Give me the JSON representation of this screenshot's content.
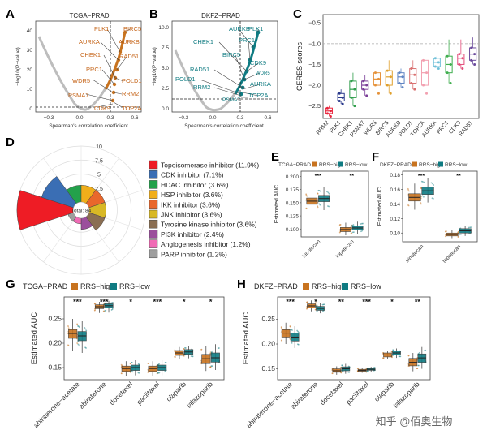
{
  "colors": {
    "high": "#c8731f",
    "low": "#0f7b82",
    "grey": "#b5b5b5",
    "dash": "#333333"
  },
  "panels": {
    "A": "A",
    "B": "B",
    "C": "C",
    "D": "D",
    "E": "E",
    "F": "F",
    "G": "G",
    "H": "H"
  },
  "panel_A": {
    "title": "TCGA−PRAD",
    "xlabel": "Spearman's correlation coefficient",
    "ylabel": "−log10(P−value)",
    "xticks": [
      "−0.3",
      "0.0",
      "0.3",
      "0.6"
    ],
    "yticks": [
      "0",
      "10",
      "20",
      "30",
      "40"
    ],
    "genes": [
      "PLK1",
      "BIRC5",
      "AURKA",
      "AURKB",
      "CHEK1",
      "RAD51",
      "PRC1",
      "POLD1",
      "WDR5",
      "RRM2",
      "PSMA7",
      "TOP2A",
      "CDK9"
    ]
  },
  "panel_B": {
    "title": "DKFZ−PRAD",
    "xlabel": "Spearman's correlation coefficient",
    "ylabel": "−log10(P−value)",
    "xticks": [
      "−0.3",
      "0.0",
      "0.3",
      "0.6"
    ],
    "yticks": [
      "0.0",
      "2.5",
      "5.0",
      "7.5",
      "10.0"
    ],
    "genes": [
      "AURKB",
      "PLK1",
      "CHEK1",
      "PRC1",
      "BIRC5",
      "CDK9",
      "RAD51",
      "WDR5",
      "POLD1",
      "RRM2",
      "AURKA",
      "PSMA7",
      "TOP2A"
    ]
  },
  "chart_data": [
    {
      "panel": "C",
      "type": "box",
      "ylabel": "CERES scores",
      "ylim": [
        -2.8,
        -0.3
      ],
      "yticks": [
        "−2.5",
        "−2.0",
        "−1.5",
        "−1.0",
        "−0.5"
      ],
      "reference_line": -1.0,
      "categories": [
        "RRM2",
        "PLK1",
        "CHEK1",
        "PSMA7",
        "WDR5",
        "BIRC5",
        "AURKB",
        "POLD1",
        "TOP2A",
        "AURKA",
        "PRC1",
        "CDK9",
        "RAD51"
      ],
      "medians": [
        -2.62,
        -2.3,
        -2.1,
        -2.0,
        -1.85,
        -1.8,
        -1.8,
        -1.75,
        -1.7,
        -1.45,
        -1.5,
        -1.35,
        -1.25
      ],
      "q1": [
        -2.68,
        -2.38,
        -2.3,
        -2.1,
        -2.0,
        -2.0,
        -1.95,
        -1.95,
        -2.0,
        -1.55,
        -1.7,
        -1.5,
        -1.4
      ],
      "q3": [
        -2.55,
        -2.2,
        -1.9,
        -1.9,
        -1.7,
        -1.65,
        -1.7,
        -1.6,
        -1.4,
        -1.35,
        -1.3,
        -1.25,
        -1.1
      ],
      "min": [
        -2.75,
        -2.45,
        -2.5,
        -2.25,
        -2.2,
        -2.2,
        -2.05,
        -2.1,
        -2.2,
        -1.6,
        -1.95,
        -1.6,
        -1.5
      ],
      "max": [
        -2.5,
        -2.1,
        -1.7,
        -1.75,
        -1.55,
        -1.4,
        -1.6,
        -1.4,
        -1.0,
        -1.3,
        -0.9,
        -0.9,
        -0.85
      ],
      "colors": [
        "#e8243c",
        "#2b3a8c",
        "#2f9d4b",
        "#7a3e97",
        "#e5923a",
        "#e0a02c",
        "#5d83c2",
        "#d97070",
        "#f2a0b0",
        "#70c0d8",
        "#3fae4e",
        "#e34c7a",
        "#6a4a9c"
      ]
    },
    {
      "panel": "D",
      "type": "pie",
      "subtype": "rose",
      "center_label": "Total: 84",
      "radial_ticks": [
        "0",
        "2.5",
        "5",
        "7.5",
        "10"
      ],
      "categories": [
        "Topoisomerase inhibitor (11.9%)",
        "CDK inhibitor (7.1%)",
        "HDAC inhibitor (3.6%)",
        "HSP inhibitor (3.6%)",
        "IKK inhibitor (3.6%)",
        "JNK inhibitor (3.6%)",
        "Tyrosine kinase inhibitor (3.6%)",
        "PI3K inhibitor (2.4%)",
        "Angiogenesis inhibitor (1.2%)",
        "PARP inhibitor (1.2%)"
      ],
      "values": [
        10,
        6,
        3,
        3,
        3,
        3,
        3,
        2,
        1,
        1
      ],
      "colors": [
        "#ee1c25",
        "#3a6eb4",
        "#23a14b",
        "#f0ae1a",
        "#e9672b",
        "#d8b825",
        "#8a6e52",
        "#9b4f9c",
        "#f06bb5",
        "#9e9e9e"
      ]
    },
    {
      "panel": "E",
      "type": "box",
      "title": "TCGA−PRAD",
      "legend": [
        "RRS−high",
        "RRS−low"
      ],
      "ylabel": "Estimated AUC",
      "yticks": [
        "0.100",
        "0.125",
        "0.150",
        "0.175",
        "0.200"
      ],
      "ylim": [
        0.085,
        0.21
      ],
      "categories": [
        "irinotecan",
        "topotecan"
      ],
      "significance": [
        "***",
        "**"
      ],
      "series": [
        {
          "name": "RRS−high",
          "median": [
            0.153,
            0.099
          ],
          "q1": [
            0.147,
            0.095
          ],
          "q3": [
            0.159,
            0.103
          ],
          "min": [
            0.132,
            0.088
          ],
          "max": [
            0.175,
            0.112
          ]
        },
        {
          "name": "RRS−low",
          "median": [
            0.158,
            0.102
          ],
          "q1": [
            0.152,
            0.098
          ],
          "q3": [
            0.164,
            0.106
          ],
          "min": [
            0.136,
            0.09
          ],
          "max": [
            0.18,
            0.114
          ]
        }
      ]
    },
    {
      "panel": "F",
      "type": "box",
      "title": "DKFZ−PRAD",
      "legend": [
        "RRS−high",
        "RRS−low"
      ],
      "ylabel": "Estimated AUC",
      "yticks": [
        "0.10",
        "0.12",
        "0.14",
        "0.16",
        "0.18"
      ],
      "ylim": [
        0.088,
        0.185
      ],
      "categories": [
        "irinotecan",
        "topotecan"
      ],
      "significance": [
        "***",
        "**"
      ],
      "series": [
        {
          "name": "RRS−high",
          "median": [
            0.149,
            0.098
          ],
          "q1": [
            0.144,
            0.096
          ],
          "q3": [
            0.154,
            0.1
          ],
          "min": [
            0.132,
            0.093
          ],
          "max": [
            0.168,
            0.104
          ]
        },
        {
          "name": "RRS−low",
          "median": [
            0.158,
            0.103
          ],
          "q1": [
            0.153,
            0.1
          ],
          "q3": [
            0.163,
            0.106
          ],
          "min": [
            0.142,
            0.096
          ],
          "max": [
            0.176,
            0.11
          ]
        }
      ]
    },
    {
      "panel": "G",
      "type": "box",
      "title": "TCGA−PRAD",
      "legend": [
        "RRS−high",
        "RRS−low"
      ],
      "ylabel": "Estimated AUC",
      "yticks": [
        "0.15",
        "0.20",
        "0.25"
      ],
      "ylim": [
        0.125,
        0.295
      ],
      "categories": [
        "abiraterone−acetate",
        "abiraterone",
        "docetaxel",
        "paclitaxel",
        "olaparib",
        "talazoparib"
      ],
      "significance": [
        "***",
        "***",
        "*",
        "***",
        "*",
        "*"
      ],
      "series": [
        {
          "name": "RRS−high",
          "median": [
            0.22,
            0.275,
            0.148,
            0.148,
            0.18,
            0.168
          ],
          "q1": [
            0.21,
            0.271,
            0.142,
            0.142,
            0.175,
            0.158
          ],
          "q3": [
            0.228,
            0.279,
            0.153,
            0.153,
            0.185,
            0.177
          ],
          "min": [
            0.185,
            0.262,
            0.133,
            0.133,
            0.168,
            0.143
          ],
          "max": [
            0.25,
            0.285,
            0.163,
            0.163,
            0.192,
            0.195
          ]
        },
        {
          "name": "RRS−low",
          "median": [
            0.215,
            0.277,
            0.15,
            0.15,
            0.182,
            0.17
          ],
          "q1": [
            0.205,
            0.273,
            0.144,
            0.144,
            0.177,
            0.161
          ],
          "q3": [
            0.224,
            0.281,
            0.155,
            0.155,
            0.187,
            0.18
          ],
          "min": [
            0.18,
            0.263,
            0.134,
            0.134,
            0.169,
            0.145
          ],
          "max": [
            0.245,
            0.287,
            0.165,
            0.165,
            0.194,
            0.198
          ]
        }
      ]
    },
    {
      "panel": "H",
      "type": "box",
      "title": "DKFZ−PRAD",
      "legend": [
        "RRS−high",
        "RRS−low"
      ],
      "ylabel": "Estimated AUC",
      "yticks": [
        "0.15",
        "0.20",
        "0.25"
      ],
      "ylim": [
        0.128,
        0.295
      ],
      "categories": [
        "abiraterone−acetate",
        "abiraterone",
        "docetaxel",
        "paclitaxel",
        "olaparib",
        "talazoparib"
      ],
      "significance": [
        "***",
        "*",
        "**",
        "***",
        "*",
        "**"
      ],
      "series": [
        {
          "name": "RRS−high",
          "median": [
            0.222,
            0.277,
            0.146,
            0.147,
            0.178,
            0.163
          ],
          "q1": [
            0.214,
            0.273,
            0.143,
            0.145,
            0.174,
            0.156
          ],
          "q3": [
            0.229,
            0.281,
            0.15,
            0.149,
            0.182,
            0.171
          ],
          "min": [
            0.2,
            0.266,
            0.138,
            0.142,
            0.169,
            0.145
          ],
          "max": [
            0.243,
            0.288,
            0.155,
            0.152,
            0.187,
            0.182
          ]
        },
        {
          "name": "RRS−low",
          "median": [
            0.214,
            0.272,
            0.15,
            0.149,
            0.182,
            0.172
          ],
          "q1": [
            0.206,
            0.268,
            0.146,
            0.147,
            0.178,
            0.163
          ],
          "q3": [
            0.222,
            0.276,
            0.154,
            0.151,
            0.186,
            0.18
          ],
          "min": [
            0.192,
            0.262,
            0.14,
            0.144,
            0.172,
            0.15
          ],
          "max": [
            0.236,
            0.283,
            0.16,
            0.154,
            0.191,
            0.194
          ]
        }
      ]
    }
  ],
  "watermark": "知乎 @佰奥生物"
}
